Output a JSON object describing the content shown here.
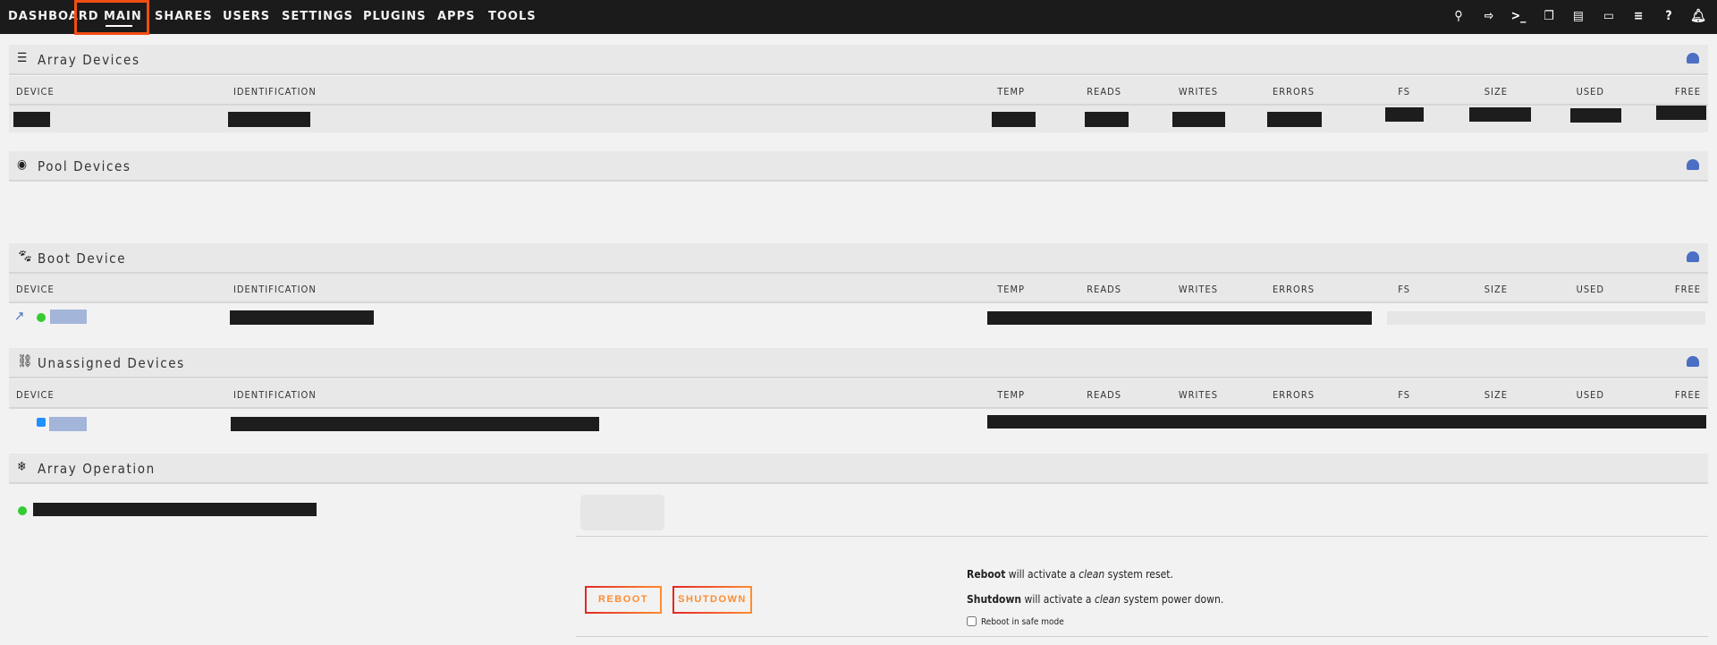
{
  "nav": {
    "items": [
      "DASHBOARD",
      "MAIN",
      "SHARES",
      "USERS",
      "SETTINGS",
      "PLUGINS",
      "APPS",
      "TOOLS"
    ],
    "active": "MAIN",
    "highlight_color": "#f24e12",
    "icons": [
      "search-icon",
      "logout-icon",
      "terminal-icon",
      "windows-icon",
      "feedback-icon",
      "monitor-icon",
      "log-icon",
      "help-icon",
      "bell-icon"
    ]
  },
  "columns": [
    "DEVICE",
    "IDENTIFICATION",
    "TEMP",
    "READS",
    "WRITES",
    "ERRORS",
    "FS",
    "SIZE",
    "USED",
    "FREE"
  ],
  "panels": {
    "array": "Array Devices",
    "pool": "Pool Devices",
    "boot": "Boot Device",
    "unassigned": "Unassigned Devices",
    "operation": "Array Operation"
  },
  "operation": {
    "reboot": "REBOOT",
    "shutdown": "SHUTDOWN",
    "reboot_b": "Reboot",
    "reboot_t1": " will activate a ",
    "reboot_i": "clean",
    "reboot_t2": " system reset.",
    "shut_b": "Shutdown",
    "shut_t1": " will activate a ",
    "shut_i": "clean",
    "shut_t2": " system power down.",
    "safe_mode": "Reboot in safe mode",
    "safe_mode_checked": false
  },
  "colors": {
    "online": "#33cc33",
    "unassigned": "#1e90ff",
    "accent": "#ff8c2f"
  }
}
